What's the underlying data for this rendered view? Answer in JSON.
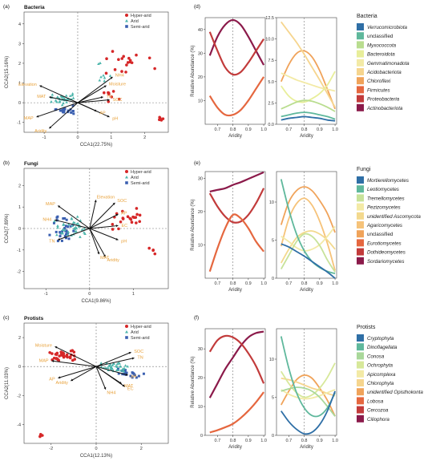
{
  "panels": {
    "a": "(a)",
    "b": "(b)",
    "c": "(c)",
    "d": "(d)",
    "e": "(e)",
    "f": "(f)"
  },
  "colors": {
    "hyper_arid": "#d62728",
    "arid": "#4db6ac",
    "semi_arid": "#3a5fb0"
  },
  "chart_data": [
    {
      "id": "a",
      "type": "scatter",
      "title": "Bacteria",
      "xlabel": "CCA1(22.75%)",
      "ylabel": "CCA2(15.16%)",
      "xticks": [
        "-1",
        "0",
        "1",
        "2"
      ],
      "yticks": [
        "4",
        "3",
        "2",
        "1",
        "0",
        "-1"
      ],
      "legend": [
        "Hyper-arid",
        "Arid",
        "Semi-arid"
      ],
      "legend_position": "top-right",
      "arrow_labels": [
        "Elevation",
        "MAP",
        "Aridity",
        "Moisture",
        "NH4",
        "SOC",
        "pH",
        "AP",
        "TN",
        "MAT"
      ]
    },
    {
      "id": "b",
      "type": "scatter",
      "title": "Fungi",
      "xlabel": "CCA1(9.86%)",
      "ylabel": "CCA2(7.89%)",
      "xticks": [
        "-1",
        "0",
        "1"
      ],
      "yticks": [
        "2",
        "1",
        "0",
        "-1",
        "-2"
      ],
      "legend": [
        "Hyper-arid",
        "Arid",
        "Semi-arid"
      ],
      "legend_position": "top-right",
      "arrow_labels": [
        "MAP",
        "NH4",
        "TN",
        "SOC",
        "AP",
        "pH",
        "Aridity",
        "MAT",
        "EC",
        "Elevation"
      ]
    },
    {
      "id": "c",
      "type": "scatter",
      "title": "Protists",
      "xlabel": "CCA1(12.13%)",
      "ylabel": "CCA2(11.03%)",
      "xticks": [
        "-2",
        "0",
        "2"
      ],
      "yticks": [
        "2",
        "0",
        "-2",
        "-4"
      ],
      "legend": [
        "Hyper-arid",
        "Arid",
        "Semi-arid"
      ],
      "legend_position": "top-right",
      "arrow_labels": [
        "Moisture",
        "MAP",
        "AP",
        "SOC",
        "TN",
        "pH",
        "MAT",
        "Aridity",
        "NH4",
        "EC"
      ]
    },
    {
      "id": "d",
      "type": "line",
      "ylabel": "Relative Abundance (%)",
      "xlabel": "Aridity",
      "legend_title": "Bacteria",
      "x": [
        0.65,
        0.7,
        0.75,
        0.8,
        0.85,
        0.9,
        0.95,
        1.0
      ],
      "left": {
        "ylim": [
          0,
          45
        ],
        "yticks": [
          "10",
          "20",
          "30",
          "40"
        ],
        "series": [
          {
            "name": "Actinobacteriota",
            "color": "#8b1a4a",
            "values": [
              29,
              37,
              42,
              44,
              42,
              37,
              31,
              25
            ]
          },
          {
            "name": "Proteobacteria",
            "color": "#c23b3b",
            "values": [
              39,
              31,
              24,
              21,
              22,
              26,
              31,
              36
            ]
          },
          {
            "name": "Firmicutes",
            "color": "#e5673f",
            "values": [
              12,
              7,
              4,
              4,
              6,
              10,
              15,
              20
            ]
          }
        ]
      },
      "right": {
        "ylim": [
          0,
          12.5
        ],
        "yticks": [
          "0.0",
          "2.5",
          "5.0",
          "7.5",
          "10.0",
          "12.5"
        ],
        "series": [
          {
            "name": "Chloroflexi",
            "color": "#f0a35a",
            "values": [
              5.0,
              7.0,
              8.3,
              8.6,
              7.9,
              6.3,
              4.1,
              1.8
            ]
          },
          {
            "name": "Acidobacteriota",
            "color": "#f6d58e",
            "values": [
              12.0,
              10.8,
              9.6,
              8.2,
              6.7,
              5.2,
              3.6,
              2.0
            ]
          },
          {
            "name": "Gemmatimonadota",
            "color": "#f3eaa6",
            "values": [
              6.0,
              5.6,
              5.2,
              4.9,
              4.6,
              4.3,
              4.1,
              3.9
            ]
          },
          {
            "name": "Bacteroidota",
            "color": "#e8ee9a",
            "values": [
              4.5,
              3.3,
              2.7,
              2.6,
              3.0,
              3.6,
              4.6,
              6.2
            ]
          },
          {
            "name": "Myxococcota",
            "color": "#b9dd8f",
            "values": [
              1.8,
              2.2,
              2.6,
              2.8,
              2.7,
              2.4,
              2.0,
              1.5
            ]
          },
          {
            "name": "unclassified",
            "color": "#5fb89c",
            "values": [
              0.9,
              1.1,
              1.3,
              1.4,
              1.3,
              1.1,
              0.9,
              0.6
            ]
          },
          {
            "name": "Verrucomicrobiota",
            "color": "#2f6fa6",
            "values": [
              0.5,
              0.7,
              0.8,
              0.9,
              0.8,
              0.7,
              0.5,
              0.4
            ]
          }
        ]
      }
    },
    {
      "id": "e",
      "type": "line",
      "ylabel": "Relative Abundance (%)",
      "xlabel": "Aridity",
      "legend_title": "Fungi",
      "x": [
        0.65,
        0.7,
        0.75,
        0.8,
        0.85,
        0.9,
        0.95,
        1.0
      ],
      "left": {
        "ylim": [
          0,
          32
        ],
        "yticks": [
          "10",
          "20",
          "30"
        ],
        "series": [
          {
            "name": "Sordariomycetes",
            "color": "#8b1a4a",
            "values": [
              26,
              26.5,
              27,
              28,
              28.8,
              29.8,
              30.8,
              31.8
            ]
          },
          {
            "name": "Dothideomycetes",
            "color": "#c23b3b",
            "values": [
              25.5,
              21.5,
              18.5,
              16.8,
              17,
              19,
              22.5,
              27
            ]
          },
          {
            "name": "Eurotiomycetes",
            "color": "#e5673f",
            "values": [
              2,
              9,
              15,
              19,
              18,
              15,
              11,
              8
            ]
          }
        ]
      },
      "right": {
        "ylim": [
          0,
          14
        ],
        "yticks": [
          "0",
          "5",
          "10"
        ],
        "series": [
          {
            "name": "unclassified",
            "color": "#f0a35a",
            "values": [
              7.0,
              10.0,
              11.5,
              12.0,
              11.5,
              10.2,
              8.5,
              6.0
            ]
          },
          {
            "name": "Agaricomycetes",
            "color": "#f6c37a",
            "values": [
              4.2,
              7.8,
              9.8,
              10.5,
              9.6,
              7.5,
              4.6,
              1.0
            ]
          },
          {
            "name": "unidentified Ascomycota",
            "color": "#f3d98e",
            "values": [
              2.0,
              3.8,
              5.3,
              6.0,
              6.2,
              5.8,
              5.0,
              3.8
            ]
          },
          {
            "name": "Pezizomycetes",
            "color": "#f3eaa6",
            "values": [
              5.5,
              4.8,
              4.0,
              3.6,
              3.8,
              4.4,
              5.5,
              6.8
            ]
          },
          {
            "name": "Tremellomycetes",
            "color": "#c7e29a",
            "values": [
              1.2,
              3.0,
              4.8,
              5.8,
              5.5,
              4.3,
              2.4,
              0.8
            ]
          },
          {
            "name": "Leotiomycetes",
            "color": "#5fb89c",
            "values": [
              13.0,
              9.0,
              5.8,
              3.6,
              2.2,
              1.4,
              0.9,
              0.6
            ]
          },
          {
            "name": "Mortierellomycetes",
            "color": "#2f6fa6",
            "values": [
              4.5,
              4.1,
              3.5,
              2.9,
              2.2,
              1.5,
              0.8,
              0.0
            ]
          }
        ]
      }
    },
    {
      "id": "f",
      "type": "line",
      "ylabel": "Relative Abundance (%)",
      "xlabel": "Aridity",
      "legend_title": "Protists",
      "x": [
        0.65,
        0.7,
        0.75,
        0.8,
        0.85,
        0.9,
        0.95,
        1.0
      ],
      "left": {
        "ylim": [
          0,
          37
        ],
        "yticks": [
          "0",
          "10",
          "20",
          "30"
        ],
        "series": [
          {
            "name": "Ciliophora",
            "color": "#8b1a4a",
            "values": [
              13,
              18,
              23,
              27,
              31,
              34,
              35.5,
              36
            ]
          },
          {
            "name": "Cercozoa",
            "color": "#c23b3b",
            "values": [
              29,
              33,
              34.5,
              34,
              32,
              28.5,
              24,
              18
            ]
          },
          {
            "name": "Lobosa",
            "color": "#e5673f",
            "values": [
              1,
              1.8,
              2.8,
              4,
              6,
              8.5,
              11.5,
              15
            ]
          }
        ]
      },
      "right": {
        "ylim": [
          0,
          14
        ],
        "yticks": [
          "0",
          "5",
          "10"
        ],
        "series": [
          {
            "name": "unidentified Opisthokonta",
            "color": "#f0a35a",
            "values": [
              4.0,
              5.8,
              7.3,
              7.9,
              7.5,
              6.2,
              4.6,
              2.5
            ]
          },
          {
            "name": "Chlorophyta",
            "color": "#f6d58e",
            "values": [
              7.5,
              7.3,
              7.0,
              6.6,
              6.2,
              5.9,
              5.5,
              5.2
            ]
          },
          {
            "name": "Apicomplexa",
            "color": "#f3eaa6",
            "values": [
              6.0,
              5.4,
              5.0,
              4.8,
              4.9,
              5.2,
              5.6,
              6.0
            ]
          },
          {
            "name": "Ochrophyta",
            "color": "#d7e89a",
            "values": [
              8.4,
              6.8,
              5.6,
              5.0,
              5.3,
              6.2,
              7.6,
              9.5
            ]
          },
          {
            "name": "Conosa",
            "color": "#a9d89a",
            "values": [
              5.8,
              6.1,
              6.3,
              6.2,
              5.8,
              5.0,
              3.8,
              2.5
            ]
          },
          {
            "name": "Dinoflagellata",
            "color": "#5fb89c",
            "values": [
              13.0,
              8.8,
              5.6,
              3.6,
              2.6,
              2.6,
              3.6,
              5.6
            ]
          },
          {
            "name": "Cryptophyta",
            "color": "#2f6fa6",
            "values": [
              3.2,
              1.8,
              0.8,
              0.2,
              0.4,
              1.4,
              3.2,
              5.8
            ]
          }
        ]
      }
    }
  ]
}
